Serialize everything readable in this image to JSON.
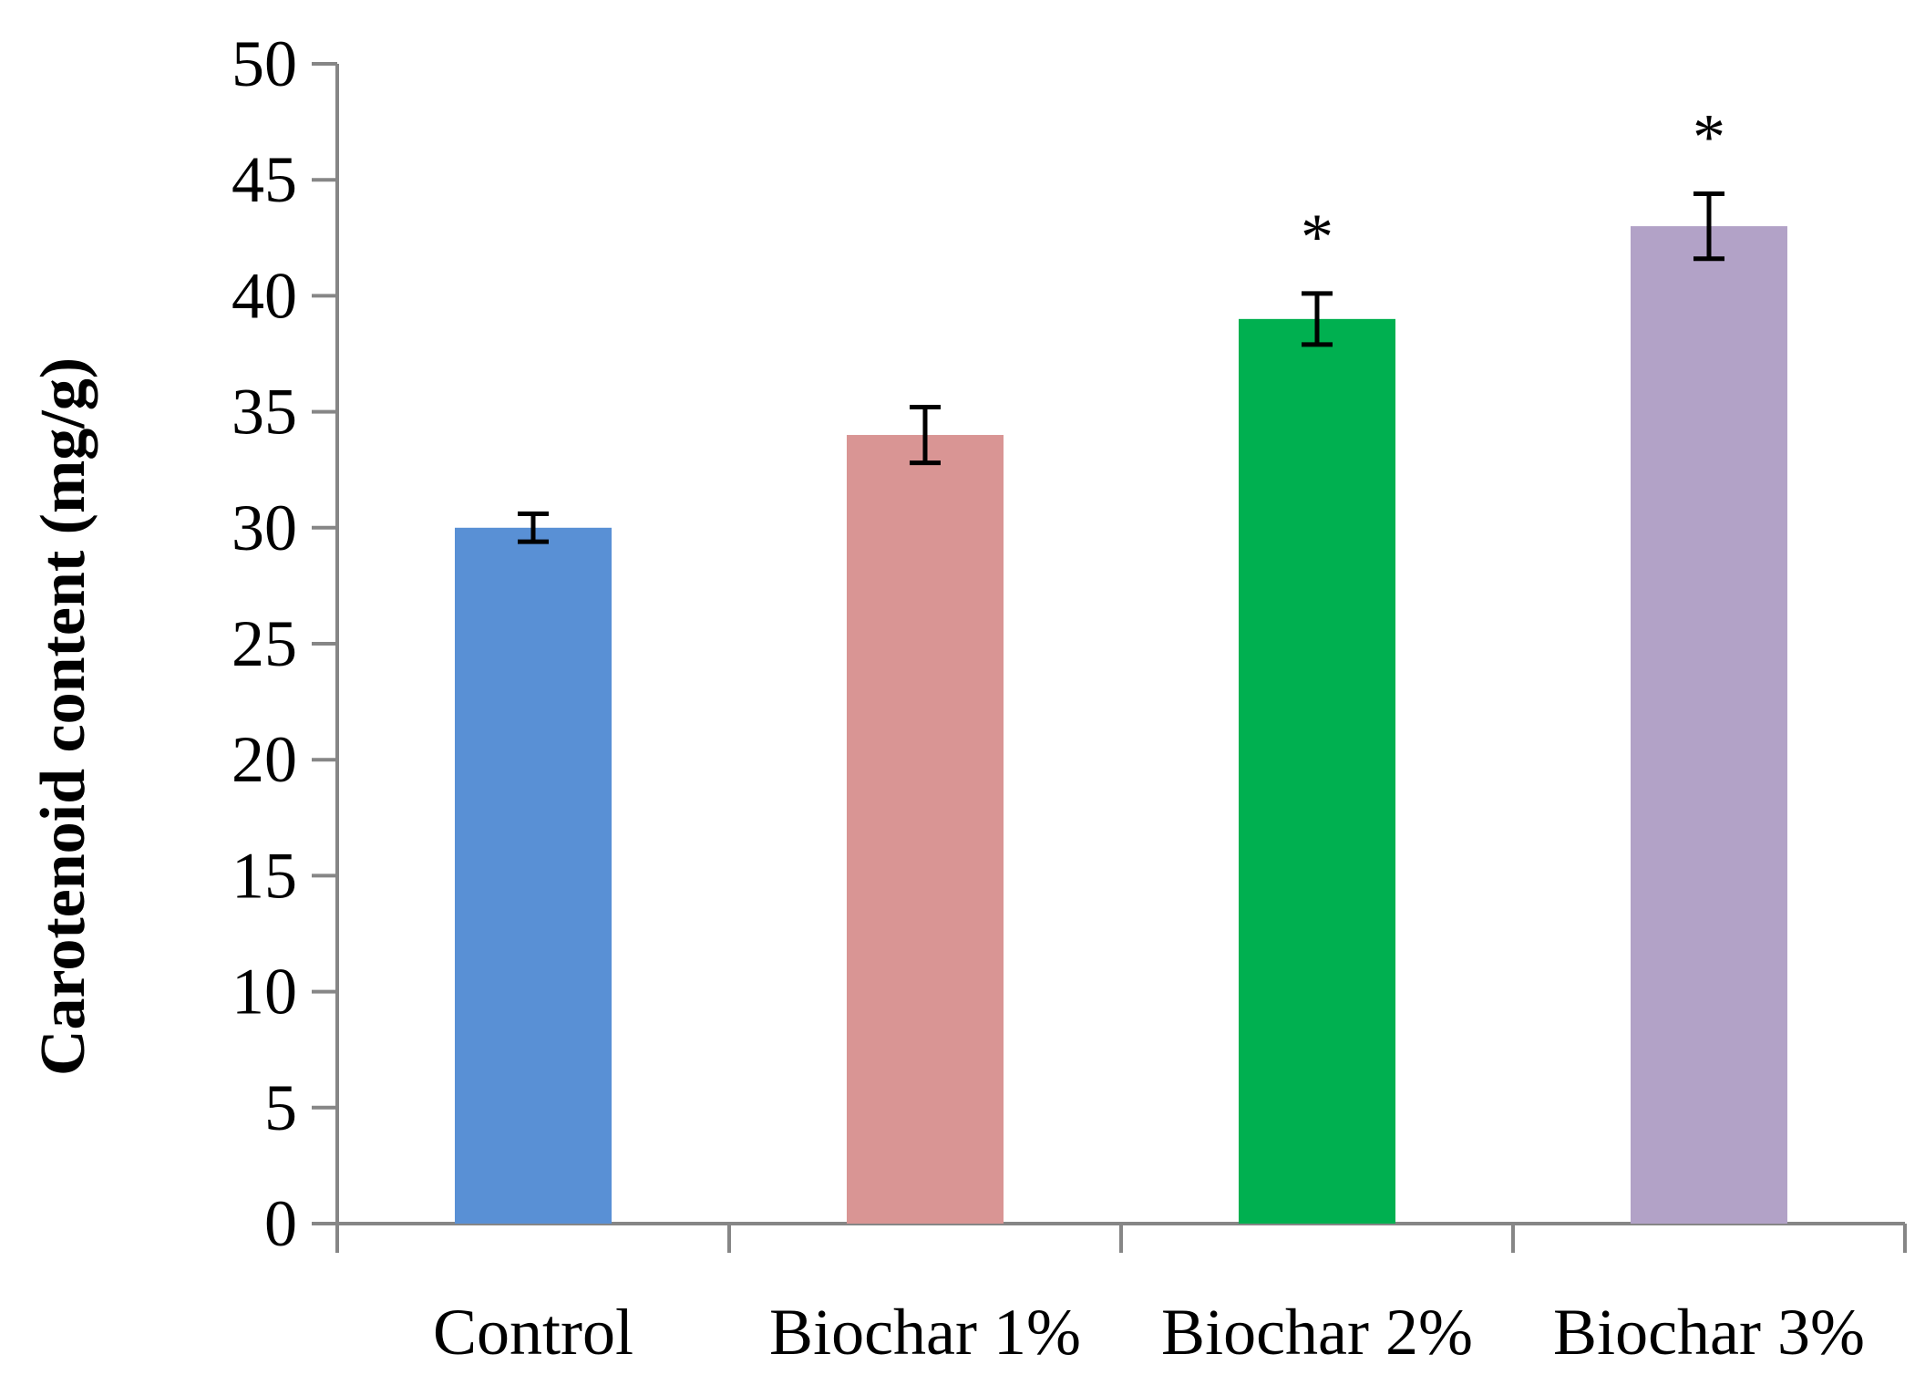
{
  "chart_data": {
    "type": "bar",
    "title": "",
    "xlabel": "",
    "ylabel": "Carotenoid content  (mg/g)",
    "categories": [
      "Control",
      "Biochar 1%",
      "Biochar 2%",
      "Biochar 3%"
    ],
    "values": [
      30,
      34,
      39,
      43
    ],
    "errors": [
      0.6,
      1.2,
      1.1,
      1.4
    ],
    "significance": [
      "",
      "",
      "*",
      "*"
    ],
    "colors": [
      "#5990D5",
      "#D99594",
      "#00B050",
      "#B2A2C7"
    ],
    "ylim": [
      0,
      50
    ],
    "yticks": [
      0,
      5,
      10,
      15,
      20,
      25,
      30,
      35,
      40,
      45,
      50
    ],
    "grid": false,
    "legend": "none"
  }
}
